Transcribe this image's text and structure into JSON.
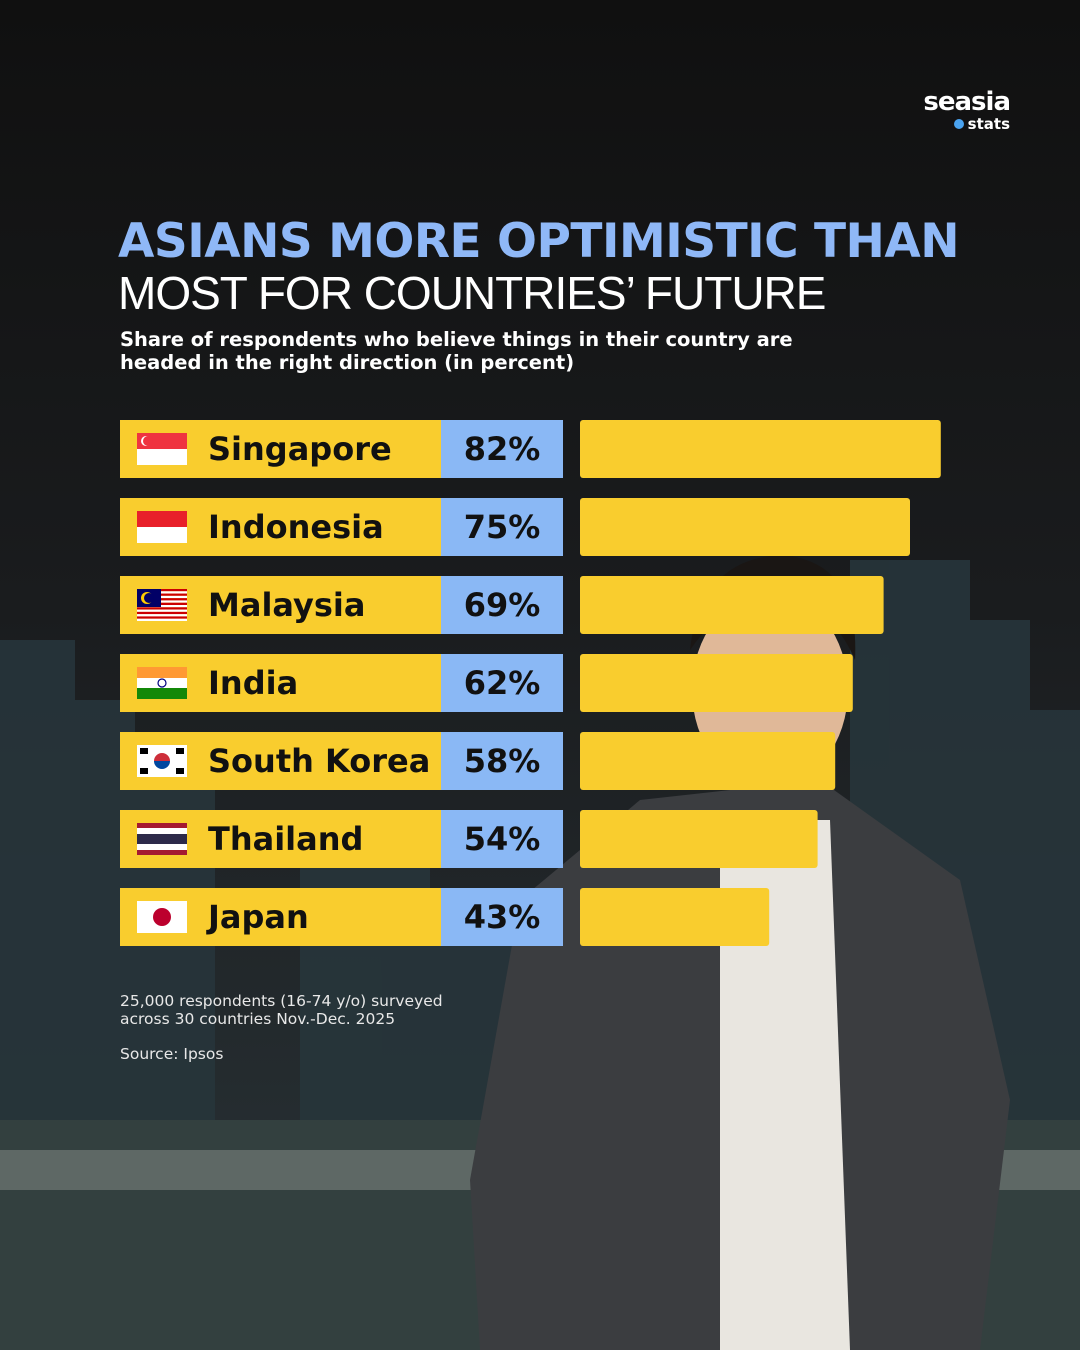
{
  "brand": {
    "name": "seasia",
    "tag": "stats"
  },
  "chart_data": {
    "type": "bar",
    "title": [
      "ASIANS MORE OPTIMISTIC THAN",
      "MOST FOR COUNTRIES’ FUTURE"
    ],
    "subtitle": "Share of respondents who believe things in their country are headed in the right direction (in percent)",
    "categories": [
      "Singapore",
      "Indonesia",
      "Malaysia",
      "India",
      "South Korea",
      "Thailand",
      "Japan"
    ],
    "values": [
      82,
      75,
      69,
      62,
      58,
      54,
      43
    ],
    "value_labels": [
      "82%",
      "75%",
      "69%",
      "62%",
      "58%",
      "54%",
      "43%"
    ],
    "color": "#f9cd2e",
    "note": "25,000 respondents (16-74 y/o) surveyed across 30 countries Nov.-Dec. 2025",
    "source": "Source: Ipsos"
  }
}
